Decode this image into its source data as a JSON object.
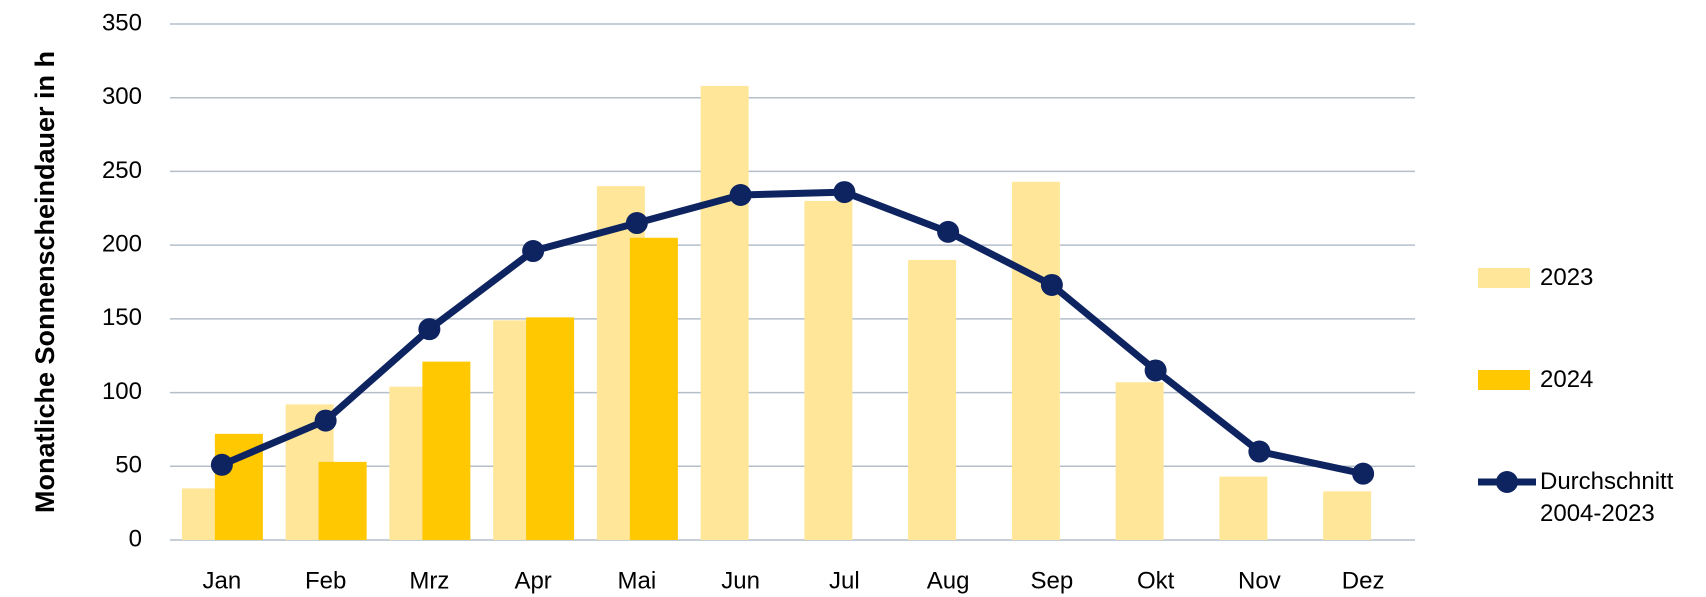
{
  "chart_data": {
    "type": "bar_line",
    "y_label": "Monatliche Sonnenscheindauer in h",
    "categories": [
      "Jan",
      "Feb",
      "Mrz",
      "Apr",
      "Mai",
      "Jun",
      "Jul",
      "Aug",
      "Sep",
      "Okt",
      "Nov",
      "Dez"
    ],
    "series": [
      {
        "name": "2023",
        "type": "bar",
        "color": "#ffe699",
        "values": [
          35,
          92,
          104,
          149,
          240,
          308,
          230,
          190,
          243,
          107,
          43,
          33
        ]
      },
      {
        "name": "2024",
        "type": "bar",
        "color": "#ffc800",
        "values": [
          72,
          53,
          121,
          151,
          205,
          null,
          null,
          null,
          null,
          null,
          null,
          null
        ]
      },
      {
        "name": "Durchschnitt 2004-2023",
        "type": "line",
        "color": "#0e2461",
        "values": [
          51,
          81,
          143,
          196,
          215,
          234,
          236,
          209,
          173,
          115,
          60,
          45
        ]
      }
    ],
    "ylim": [
      0,
      350
    ],
    "yticks": [
      0,
      50,
      100,
      150,
      200,
      250,
      300,
      350
    ],
    "grid": true,
    "legend": "right"
  }
}
